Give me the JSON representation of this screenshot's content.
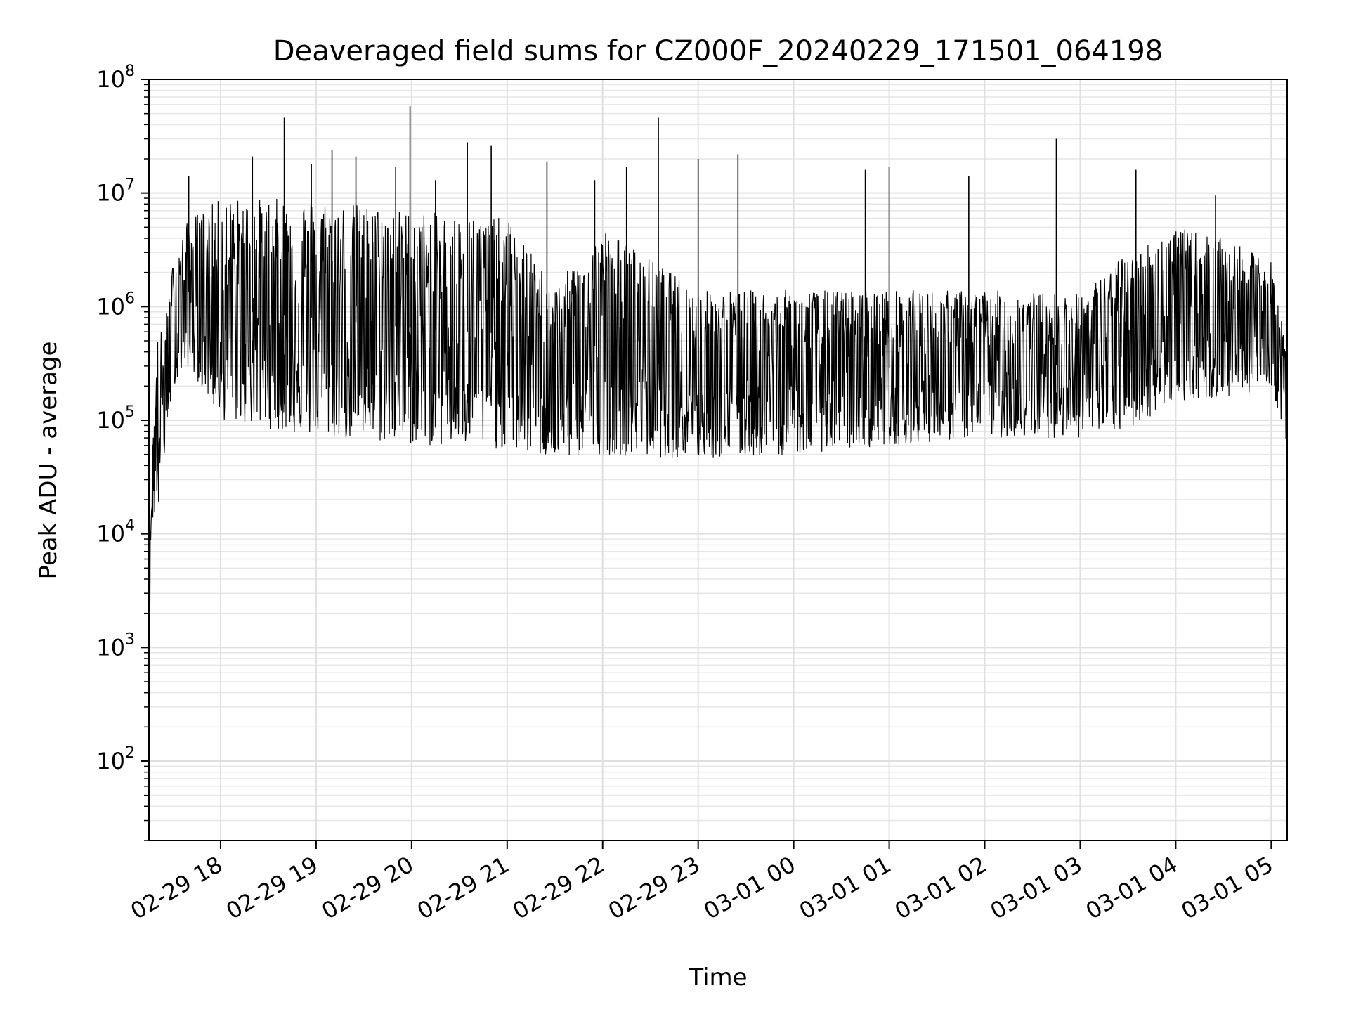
{
  "chart_data": {
    "type": "line",
    "title": "Deaveraged field sums for CZ000F_20240229_171501_064198",
    "xlabel": "Time",
    "ylabel": "Peak ADU - average",
    "y_scale": "log",
    "ylim": [
      20,
      100000000
    ],
    "xlim": [
      "2024-02-29 17:15",
      "2024-03-01 05:10"
    ],
    "grid": true,
    "x_ticks": [
      {
        "value": "2024-02-29 18:00",
        "label": "02-29 18"
      },
      {
        "value": "2024-02-29 19:00",
        "label": "02-29 19"
      },
      {
        "value": "2024-02-29 20:00",
        "label": "02-29 20"
      },
      {
        "value": "2024-02-29 21:00",
        "label": "02-29 21"
      },
      {
        "value": "2024-02-29 22:00",
        "label": "02-29 22"
      },
      {
        "value": "2024-02-29 23:00",
        "label": "02-29 23"
      },
      {
        "value": "2024-03-01 00:00",
        "label": "03-01 00"
      },
      {
        "value": "2024-03-01 01:00",
        "label": "03-01 01"
      },
      {
        "value": "2024-03-01 02:00",
        "label": "03-01 02"
      },
      {
        "value": "2024-03-01 03:00",
        "label": "03-01 03"
      },
      {
        "value": "2024-03-01 04:00",
        "label": "03-01 04"
      },
      {
        "value": "2024-03-01 05:00",
        "label": "03-01 05"
      }
    ],
    "y_ticks": [
      {
        "value": 100,
        "base": "10",
        "exp": "2"
      },
      {
        "value": 1000,
        "base": "10",
        "exp": "3"
      },
      {
        "value": 10000,
        "base": "10",
        "exp": "4"
      },
      {
        "value": 100000,
        "base": "10",
        "exp": "5"
      },
      {
        "value": 1000000,
        "base": "10",
        "exp": "6"
      },
      {
        "value": 10000000,
        "base": "10",
        "exp": "7"
      },
      {
        "value": 100000000,
        "base": "10",
        "exp": "8"
      }
    ],
    "series": [
      {
        "color": "#000000",
        "envelope": [
          {
            "x": "2024-02-29 17:15",
            "low": 100,
            "high": 100
          },
          {
            "x": "2024-02-29 17:16",
            "low": 8000,
            "high": 30000
          },
          {
            "x": "2024-02-29 17:18",
            "low": 15000,
            "high": 120000
          },
          {
            "x": "2024-02-29 17:20",
            "low": 12000,
            "high": 550000
          },
          {
            "x": "2024-02-29 17:25",
            "low": 50000,
            "high": 700000
          },
          {
            "x": "2024-02-29 17:30",
            "low": 200000,
            "high": 2500000
          },
          {
            "x": "2024-02-29 17:40",
            "low": 300000,
            "high": 6000000
          },
          {
            "x": "2024-02-29 18:00",
            "low": 100000,
            "high": 9000000
          },
          {
            "x": "2024-02-29 19:00",
            "low": 70000,
            "high": 9000000
          },
          {
            "x": "2024-02-29 20:00",
            "low": 60000,
            "high": 7000000
          },
          {
            "x": "2024-02-29 21:00",
            "low": 55000,
            "high": 6000000
          },
          {
            "x": "2024-02-29 21:30",
            "low": 45000,
            "high": 1500000
          },
          {
            "x": "2024-02-29 22:00",
            "low": 50000,
            "high": 5000000
          },
          {
            "x": "2024-02-29 23:00",
            "low": 45000,
            "high": 1400000
          },
          {
            "x": "2024-03-01 00:00",
            "low": 50000,
            "high": 1400000
          },
          {
            "x": "2024-03-01 01:00",
            "low": 60000,
            "high": 1400000
          },
          {
            "x": "2024-03-01 02:00",
            "low": 70000,
            "high": 1400000
          },
          {
            "x": "2024-03-01 03:00",
            "low": 70000,
            "high": 1300000
          },
          {
            "x": "2024-03-01 03:30",
            "low": 80000,
            "high": 3000000
          },
          {
            "x": "2024-03-01 04:00",
            "low": 150000,
            "high": 5000000
          },
          {
            "x": "2024-03-01 04:30",
            "low": 150000,
            "high": 4000000
          },
          {
            "x": "2024-03-01 05:00",
            "low": 200000,
            "high": 2500000
          },
          {
            "x": "2024-03-01 05:10",
            "low": 60000,
            "high": 400000
          }
        ],
        "spikes": [
          {
            "x": "2024-02-29 17:40",
            "y": 14000000
          },
          {
            "x": "2024-02-29 18:20",
            "y": 21000000
          },
          {
            "x": "2024-02-29 18:40",
            "y": 46000000
          },
          {
            "x": "2024-02-29 18:57",
            "y": 18000000
          },
          {
            "x": "2024-02-29 19:10",
            "y": 24000000
          },
          {
            "x": "2024-02-29 19:25",
            "y": 21000000
          },
          {
            "x": "2024-02-29 19:50",
            "y": 17000000
          },
          {
            "x": "2024-02-29 19:59",
            "y": 58000000
          },
          {
            "x": "2024-02-29 20:15",
            "y": 13000000
          },
          {
            "x": "2024-02-29 20:35",
            "y": 28000000
          },
          {
            "x": "2024-02-29 20:50",
            "y": 26000000
          },
          {
            "x": "2024-02-29 21:25",
            "y": 19000000
          },
          {
            "x": "2024-02-29 21:55",
            "y": 13000000
          },
          {
            "x": "2024-02-29 22:15",
            "y": 17000000
          },
          {
            "x": "2024-02-29 22:35",
            "y": 46000000
          },
          {
            "x": "2024-02-29 23:00",
            "y": 20000000
          },
          {
            "x": "2024-02-29 23:25",
            "y": 22000000
          },
          {
            "x": "2024-03-01 00:45",
            "y": 16000000
          },
          {
            "x": "2024-03-01 01:00",
            "y": 17000000
          },
          {
            "x": "2024-03-01 01:50",
            "y": 14000000
          },
          {
            "x": "2024-03-01 02:45",
            "y": 30000000
          },
          {
            "x": "2024-03-01 03:35",
            "y": 16000000
          },
          {
            "x": "2024-03-01 04:25",
            "y": 9500000
          }
        ]
      }
    ]
  }
}
